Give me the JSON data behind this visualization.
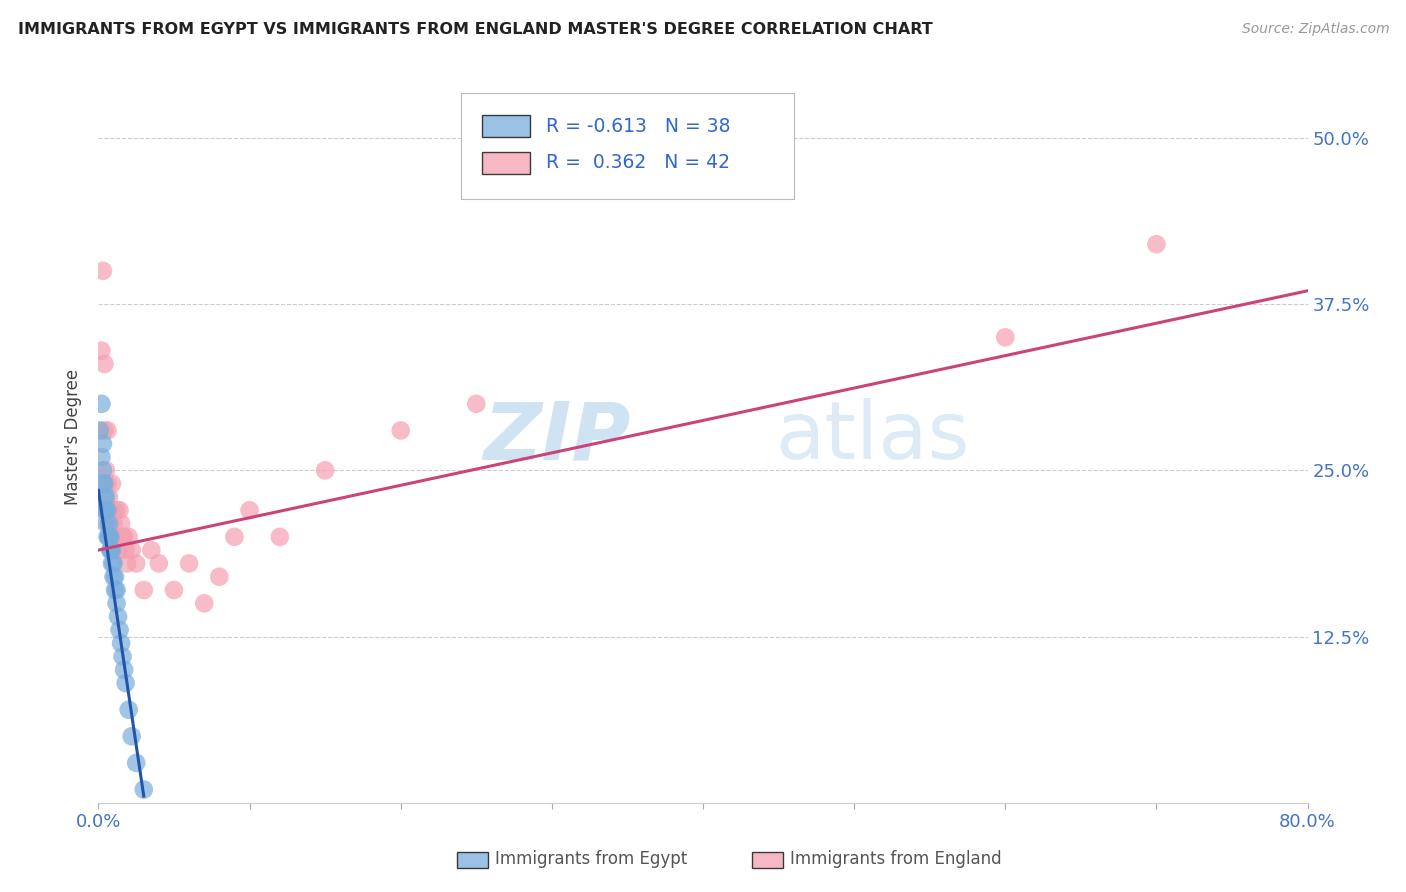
{
  "title": "IMMIGRANTS FROM EGYPT VS IMMIGRANTS FROM ENGLAND MASTER'S DEGREE CORRELATION CHART",
  "source": "Source: ZipAtlas.com",
  "ylabel": "Master's Degree",
  "xlim": [
    0.0,
    0.8
  ],
  "ylim": [
    0.0,
    0.55
  ],
  "x_tick_positions": [
    0.0,
    0.1,
    0.2,
    0.3,
    0.4,
    0.5,
    0.6,
    0.7,
    0.8
  ],
  "x_tick_labels": [
    "0.0%",
    "",
    "",
    "",
    "",
    "",
    "",
    "",
    "80.0%"
  ],
  "y_tick_positions": [
    0.0,
    0.125,
    0.25,
    0.375,
    0.5
  ],
  "y_tick_labels": [
    "",
    "12.5%",
    "25.0%",
    "37.5%",
    "50.0%"
  ],
  "tick_color": "#4472c4",
  "egypt_color": "#7aaddb",
  "england_color": "#f4a0b0",
  "egypt_line_color": "#2255aa",
  "england_line_color": "#cc4477",
  "egypt_R": -0.613,
  "egypt_N": 38,
  "england_R": 0.362,
  "england_N": 42,
  "legend_label_egypt": "Immigrants from Egypt",
  "legend_label_england": "Immigrants from England",
  "watermark_zip": "ZIP",
  "watermark_atlas": "atlas",
  "background_color": "#ffffff",
  "egypt_x": [
    0.001,
    0.002,
    0.002,
    0.003,
    0.003,
    0.003,
    0.004,
    0.004,
    0.004,
    0.005,
    0.005,
    0.005,
    0.006,
    0.006,
    0.007,
    0.007,
    0.007,
    0.008,
    0.008,
    0.008,
    0.009,
    0.009,
    0.01,
    0.01,
    0.011,
    0.011,
    0.012,
    0.012,
    0.013,
    0.014,
    0.015,
    0.016,
    0.017,
    0.018,
    0.02,
    0.022,
    0.025,
    0.03
  ],
  "egypt_y": [
    0.28,
    0.3,
    0.26,
    0.27,
    0.25,
    0.24,
    0.24,
    0.23,
    0.22,
    0.23,
    0.22,
    0.21,
    0.22,
    0.2,
    0.21,
    0.2,
    0.2,
    0.2,
    0.19,
    0.19,
    0.19,
    0.18,
    0.18,
    0.17,
    0.17,
    0.16,
    0.16,
    0.15,
    0.14,
    0.13,
    0.12,
    0.11,
    0.1,
    0.09,
    0.07,
    0.05,
    0.03,
    0.01
  ],
  "england_x": [
    0.002,
    0.003,
    0.004,
    0.004,
    0.005,
    0.005,
    0.006,
    0.006,
    0.007,
    0.007,
    0.008,
    0.008,
    0.009,
    0.01,
    0.01,
    0.011,
    0.012,
    0.013,
    0.014,
    0.015,
    0.016,
    0.017,
    0.018,
    0.019,
    0.02,
    0.022,
    0.025,
    0.03,
    0.035,
    0.04,
    0.05,
    0.06,
    0.07,
    0.08,
    0.09,
    0.1,
    0.12,
    0.15,
    0.2,
    0.25,
    0.6,
    0.7
  ],
  "england_y": [
    0.34,
    0.4,
    0.28,
    0.33,
    0.22,
    0.25,
    0.24,
    0.28,
    0.21,
    0.23,
    0.22,
    0.2,
    0.24,
    0.21,
    0.22,
    0.2,
    0.22,
    0.19,
    0.22,
    0.21,
    0.2,
    0.2,
    0.19,
    0.18,
    0.2,
    0.19,
    0.18,
    0.16,
    0.19,
    0.18,
    0.16,
    0.18,
    0.15,
    0.17,
    0.2,
    0.22,
    0.2,
    0.25,
    0.28,
    0.3,
    0.35,
    0.42
  ],
  "egypt_line_x": [
    0.0,
    0.03
  ],
  "egypt_line_y": [
    0.235,
    0.005
  ],
  "england_line_x": [
    0.0,
    0.8
  ],
  "england_line_y": [
    0.19,
    0.385
  ]
}
